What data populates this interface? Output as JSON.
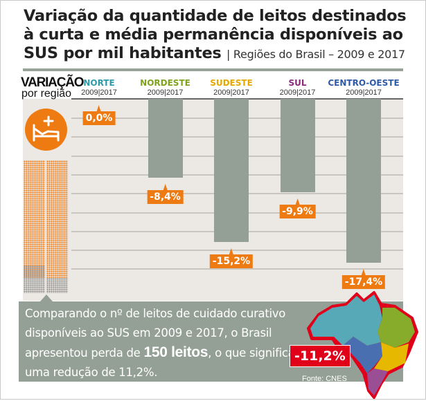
{
  "title": "Variação da quantidade de leitos destinados à curta e média permanência disponíveis ao SUS por mil habitantes",
  "subtitle": "| Regiões do Brasil – 2009 e 2017",
  "side": {
    "heading": "VARIAÇÃO",
    "subheading": "por região",
    "icon": "hospital-bed-icon"
  },
  "chart_data": {
    "type": "bar",
    "title": "Variação da quantidade de leitos destinados à curta e média permanência disponíveis ao SUS por mil habitantes",
    "categories": [
      "NORTE",
      "NORDESTE",
      "SUDESTE",
      "SUL",
      "CENTRO-OESTE"
    ],
    "category_sublabel": "2009|2017",
    "category_colors": [
      "#2e9ca8",
      "#7fa31e",
      "#e6a800",
      "#8a2a7e",
      "#2f5aa8"
    ],
    "values": [
      0.0,
      -8.4,
      -15.2,
      -9.9,
      -17.4
    ],
    "labels": [
      "0,0%",
      "-8,4%",
      "-15,2%",
      "-9,9%",
      "-17,4%"
    ],
    "unit": "%",
    "bar_color": "#94a096",
    "label_color": "#ee7a12",
    "ylim": [
      -21,
      0
    ],
    "grid": true
  },
  "summary": {
    "text_before": "Comparando o nº de leitos de cuidado curativo disponíveis ao SUS em 2009 e 2017, o Brasil apresentou perda de ",
    "highlight": "150 leitos",
    "text_after": ", o que significa uma redução de 11,2%.",
    "brazil_value": "-11,2%",
    "brazil_color": "#e1001a",
    "source": "Fonte: CNES"
  }
}
